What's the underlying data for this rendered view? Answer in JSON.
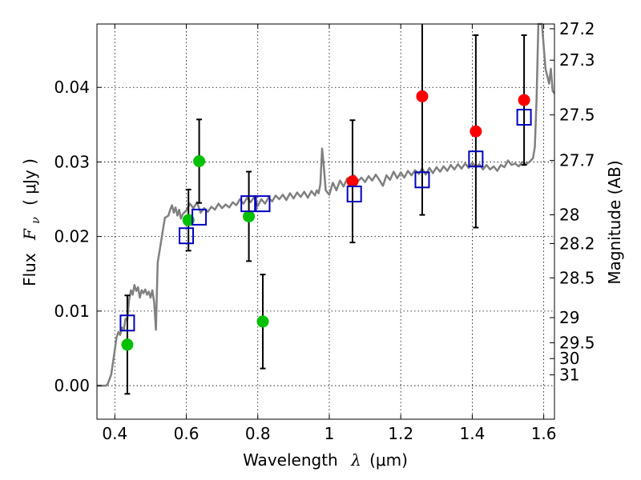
{
  "chart_data": {
    "type": "scatter",
    "xlabel_text": "Wavelength",
    "xlabel_symbol": "λ",
    "xlabel_unit": "(μm)",
    "ylabel_text": "Flux",
    "ylabel_symbol": "F",
    "ylabel_sub": "ν",
    "ylabel_unit": "( μJy )",
    "y2label": "Magnitude (AB)",
    "xlim": [
      0.35,
      1.63
    ],
    "ylim": [
      -0.0045,
      0.0485
    ],
    "x_ticks": [
      0.4,
      0.6,
      0.8,
      1.0,
      1.2,
      1.4,
      1.6
    ],
    "x_tick_labels": [
      "0.4",
      "0.6",
      "0.8",
      "1",
      "1.2",
      "1.4",
      "1.6"
    ],
    "y_ticks": [
      0.0,
      0.01,
      0.02,
      0.03,
      0.04
    ],
    "y_tick_labels": [
      "0.00",
      "0.01",
      "0.02",
      "0.03",
      "0.04"
    ],
    "magnitude_ticks": [
      27.2,
      27.3,
      27.5,
      27.7,
      28,
      28.2,
      28.5,
      29,
      29.5,
      30,
      31
    ],
    "magnitude_tick_labels": [
      "27.2",
      "27.3",
      "27.5",
      "27.7",
      "28",
      "28.2",
      "28.5",
      "29",
      "29.5",
      "30",
      "31"
    ],
    "grid": true,
    "colors": {
      "model": "#808080",
      "green": "#00c000",
      "red": "#ff0000",
      "box": "#0000c0",
      "errorbar": "#000000"
    },
    "model_sed": [
      [
        0.35,
        0.0
      ],
      [
        0.375,
        0.0
      ],
      [
        0.38,
        0.0002
      ],
      [
        0.39,
        0.0015
      ],
      [
        0.4,
        0.0048
      ],
      [
        0.405,
        0.0065
      ],
      [
        0.41,
        0.0072
      ],
      [
        0.415,
        0.0068
      ],
      [
        0.42,
        0.0078
      ],
      [
        0.425,
        0.0075
      ],
      [
        0.43,
        0.009
      ],
      [
        0.435,
        0.0088
      ],
      [
        0.44,
        0.0115
      ],
      [
        0.445,
        0.0128
      ],
      [
        0.45,
        0.0122
      ],
      [
        0.455,
        0.0135
      ],
      [
        0.46,
        0.0127
      ],
      [
        0.465,
        0.0132
      ],
      [
        0.47,
        0.0118
      ],
      [
        0.475,
        0.0128
      ],
      [
        0.48,
        0.0124
      ],
      [
        0.485,
        0.0129
      ],
      [
        0.49,
        0.0122
      ],
      [
        0.495,
        0.0126
      ],
      [
        0.5,
        0.0118
      ],
      [
        0.505,
        0.0128
      ],
      [
        0.51,
        0.0112
      ],
      [
        0.515,
        0.0075
      ],
      [
        0.52,
        0.0165
      ],
      [
        0.53,
        0.0195
      ],
      [
        0.535,
        0.021
      ],
      [
        0.54,
        0.0225
      ],
      [
        0.55,
        0.0228
      ],
      [
        0.555,
        0.0236
      ],
      [
        0.56,
        0.0242
      ],
      [
        0.565,
        0.0232
      ],
      [
        0.57,
        0.0239
      ],
      [
        0.575,
        0.0228
      ],
      [
        0.58,
        0.0236
      ],
      [
        0.585,
        0.0224
      ],
      [
        0.59,
        0.023
      ],
      [
        0.6,
        0.0235
      ],
      [
        0.61,
        0.0244
      ],
      [
        0.62,
        0.0238
      ],
      [
        0.63,
        0.0246
      ],
      [
        0.64,
        0.0232
      ],
      [
        0.65,
        0.0238
      ],
      [
        0.66,
        0.0233
      ],
      [
        0.67,
        0.024
      ],
      [
        0.68,
        0.0236
      ],
      [
        0.69,
        0.0244
      ],
      [
        0.7,
        0.0238
      ],
      [
        0.71,
        0.0243
      ],
      [
        0.72,
        0.0239
      ],
      [
        0.73,
        0.0246
      ],
      [
        0.74,
        0.0242
      ],
      [
        0.75,
        0.025
      ],
      [
        0.76,
        0.0244
      ],
      [
        0.77,
        0.0252
      ],
      [
        0.78,
        0.0246
      ],
      [
        0.79,
        0.0253
      ],
      [
        0.8,
        0.0241
      ],
      [
        0.81,
        0.025
      ],
      [
        0.82,
        0.0244
      ],
      [
        0.83,
        0.0252
      ],
      [
        0.84,
        0.0247
      ],
      [
        0.85,
        0.0255
      ],
      [
        0.86,
        0.025
      ],
      [
        0.87,
        0.0256
      ],
      [
        0.88,
        0.0249
      ],
      [
        0.89,
        0.0258
      ],
      [
        0.9,
        0.0251
      ],
      [
        0.91,
        0.0259
      ],
      [
        0.92,
        0.0253
      ],
      [
        0.93,
        0.026
      ],
      [
        0.94,
        0.0252
      ],
      [
        0.95,
        0.0261
      ],
      [
        0.96,
        0.0255
      ],
      [
        0.965,
        0.0262
      ],
      [
        0.97,
        0.0258
      ],
      [
        0.975,
        0.027
      ],
      [
        0.98,
        0.0318
      ],
      [
        0.985,
        0.0292
      ],
      [
        0.99,
        0.0262
      ],
      [
        1.0,
        0.0256
      ],
      [
        1.01,
        0.0272
      ],
      [
        1.02,
        0.0262
      ],
      [
        1.03,
        0.0275
      ],
      [
        1.04,
        0.0267
      ],
      [
        1.05,
        0.0278
      ],
      [
        1.06,
        0.0272
      ],
      [
        1.07,
        0.0282
      ],
      [
        1.08,
        0.0274
      ],
      [
        1.09,
        0.0279
      ],
      [
        1.1,
        0.0273
      ],
      [
        1.11,
        0.0281
      ],
      [
        1.12,
        0.0275
      ],
      [
        1.13,
        0.0283
      ],
      [
        1.14,
        0.0276
      ],
      [
        1.15,
        0.0268
      ],
      [
        1.16,
        0.0282
      ],
      [
        1.17,
        0.0276
      ],
      [
        1.18,
        0.0287
      ],
      [
        1.19,
        0.0278
      ],
      [
        1.2,
        0.0286
      ],
      [
        1.21,
        0.0279
      ],
      [
        1.22,
        0.0288
      ],
      [
        1.23,
        0.0282
      ],
      [
        1.24,
        0.0289
      ],
      [
        1.25,
        0.0284
      ],
      [
        1.26,
        0.0291
      ],
      [
        1.27,
        0.0283
      ],
      [
        1.28,
        0.0292
      ],
      [
        1.29,
        0.0285
      ],
      [
        1.3,
        0.0293
      ],
      [
        1.31,
        0.0287
      ],
      [
        1.32,
        0.0294
      ],
      [
        1.33,
        0.0288
      ],
      [
        1.34,
        0.0296
      ],
      [
        1.35,
        0.029
      ],
      [
        1.36,
        0.0297
      ],
      [
        1.37,
        0.0291
      ],
      [
        1.38,
        0.0298
      ],
      [
        1.39,
        0.0292
      ],
      [
        1.4,
        0.0299
      ],
      [
        1.41,
        0.0293
      ],
      [
        1.42,
        0.0297
      ],
      [
        1.43,
        0.029
      ],
      [
        1.44,
        0.0296
      ],
      [
        1.45,
        0.029
      ],
      [
        1.46,
        0.0294
      ],
      [
        1.47,
        0.0288
      ],
      [
        1.48,
        0.0296
      ],
      [
        1.49,
        0.0293
      ],
      [
        1.5,
        0.0302
      ],
      [
        1.51,
        0.0296
      ],
      [
        1.52,
        0.0298
      ],
      [
        1.53,
        0.0294
      ],
      [
        1.54,
        0.03
      ],
      [
        1.55,
        0.0297
      ],
      [
        1.56,
        0.03
      ],
      [
        1.57,
        0.0305
      ],
      [
        1.575,
        0.032
      ],
      [
        1.58,
        0.0385
      ],
      [
        1.585,
        0.05
      ],
      [
        1.595,
        0.05
      ],
      [
        1.6,
        0.0455
      ],
      [
        1.605,
        0.0425
      ],
      [
        1.61,
        0.0415
      ],
      [
        1.615,
        0.0405
      ],
      [
        1.62,
        0.0425
      ],
      [
        1.625,
        0.0395
      ],
      [
        1.63,
        0.0392
      ]
    ],
    "green_points": [
      {
        "x": 0.435,
        "y": 0.0055,
        "err": 0.0066
      },
      {
        "x": 0.606,
        "y": 0.0222,
        "err": 0.0041
      },
      {
        "x": 0.636,
        "y": 0.0301,
        "err": 0.0056
      },
      {
        "x": 0.775,
        "y": 0.0227,
        "err": 0.006
      },
      {
        "x": 0.814,
        "y": 0.0086,
        "err": 0.0063
      }
    ],
    "red_points": [
      {
        "x": 1.065,
        "y": 0.0274,
        "err": 0.0082
      },
      {
        "x": 1.26,
        "y": 0.0388,
        "err": 0.0159
      },
      {
        "x": 1.41,
        "y": 0.0341,
        "err": 0.0129
      },
      {
        "x": 1.545,
        "y": 0.0383,
        "err": 0.0087
      }
    ],
    "model_boxes": [
      {
        "x": 0.435,
        "y": 0.0084
      },
      {
        "x": 0.6,
        "y": 0.0201
      },
      {
        "x": 0.636,
        "y": 0.0226
      },
      {
        "x": 0.773,
        "y": 0.0244
      },
      {
        "x": 0.814,
        "y": 0.0244
      },
      {
        "x": 1.07,
        "y": 0.0257
      },
      {
        "x": 1.26,
        "y": 0.0276
      },
      {
        "x": 1.41,
        "y": 0.0304
      },
      {
        "x": 1.545,
        "y": 0.036
      }
    ]
  }
}
